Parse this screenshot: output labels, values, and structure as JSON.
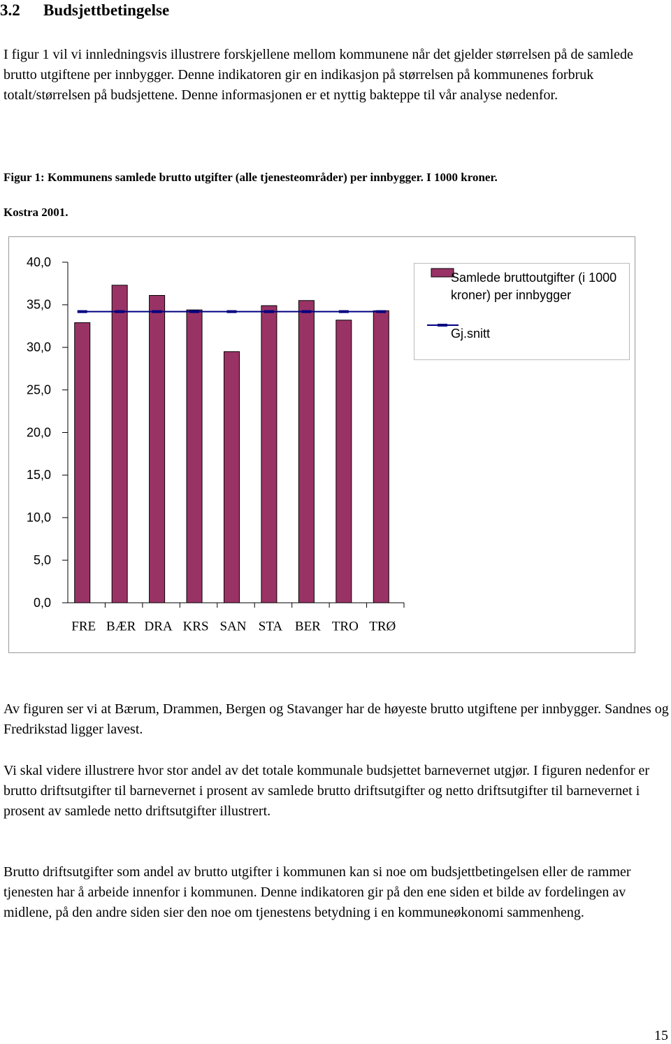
{
  "heading": {
    "number": "3.2",
    "title": "Budsjettbetingelse"
  },
  "paragraphs": [
    "I figur 1 vil vi innledningsvis illustrere forskjellene mellom kommunene når det gjelder størrelsen på de samlede brutto utgiftene per innbygger. Denne indikatoren gir en indikasjon på størrelsen på kommunenes forbruk totalt/størrelsen på budsjettene. Denne informasjonen er et nyttig bakteppe til vår analyse nedenfor.",
    "Av figuren ser vi at Bærum, Drammen, Bergen og Stavanger har de høyeste brutto utgiftene per innbygger. Sandnes og Fredrikstad ligger lavest.",
    "Vi skal videre illustrere hvor stor andel av det totale kommunale budsjettet barnevernet utgjør. I figuren nedenfor er brutto driftsutgifter til barnevernet i prosent av samlede brutto driftsutgifter og netto driftsutgifter til barnevernet i prosent av samlede netto driftsutgifter illustrert.",
    "Brutto driftsutgifter som andel av brutto utgifter i kommunen kan si noe om budsjettbetingelsen eller de rammer tjenesten har å arbeide innenfor i kommunen.  Denne indikatoren gir på den ene siden et bilde av fordelingen av midlene, på den andre siden sier den noe om tjenestens betydning i en kommuneøkonomi sammenheng."
  ],
  "caption": [
    "Figur 1: Kommunens samlede brutto utgifter (alle tjenesteområder) per innbygger. I 1000 kroner.",
    "Kostra 2001."
  ],
  "page_number": "15",
  "chart_data": {
    "type": "bar",
    "categories": [
      "FRE",
      "BÆR",
      "DRA",
      "KRS",
      "SAN",
      "STA",
      "BER",
      "TRO",
      "TRØ"
    ],
    "series": [
      {
        "name": "Samlede bruttoutgifter (i 1000 kroner) per innbygger",
        "color": "#993366",
        "values": [
          32.9,
          37.3,
          36.1,
          34.4,
          29.5,
          34.9,
          35.5,
          33.2,
          34.3
        ]
      },
      {
        "name": "Gj.snitt",
        "type": "line",
        "color": "#000080",
        "values": [
          34.2,
          34.2,
          34.2,
          34.2,
          34.2,
          34.2,
          34.2,
          34.2,
          34.2
        ]
      }
    ],
    "ylim": [
      0,
      40
    ],
    "yticks": [
      {
        "value": 0,
        "label": "0,0"
      },
      {
        "value": 5,
        "label": "5,0"
      },
      {
        "value": 10,
        "label": "10,0"
      },
      {
        "value": 15,
        "label": "15,0"
      },
      {
        "value": 20,
        "label": "20,0"
      },
      {
        "value": 25,
        "label": "25,0"
      },
      {
        "value": 30,
        "label": "30,0"
      },
      {
        "value": 35,
        "label": "35,0"
      },
      {
        "value": 40,
        "label": "40,0"
      }
    ],
    "legend": "top-right"
  }
}
